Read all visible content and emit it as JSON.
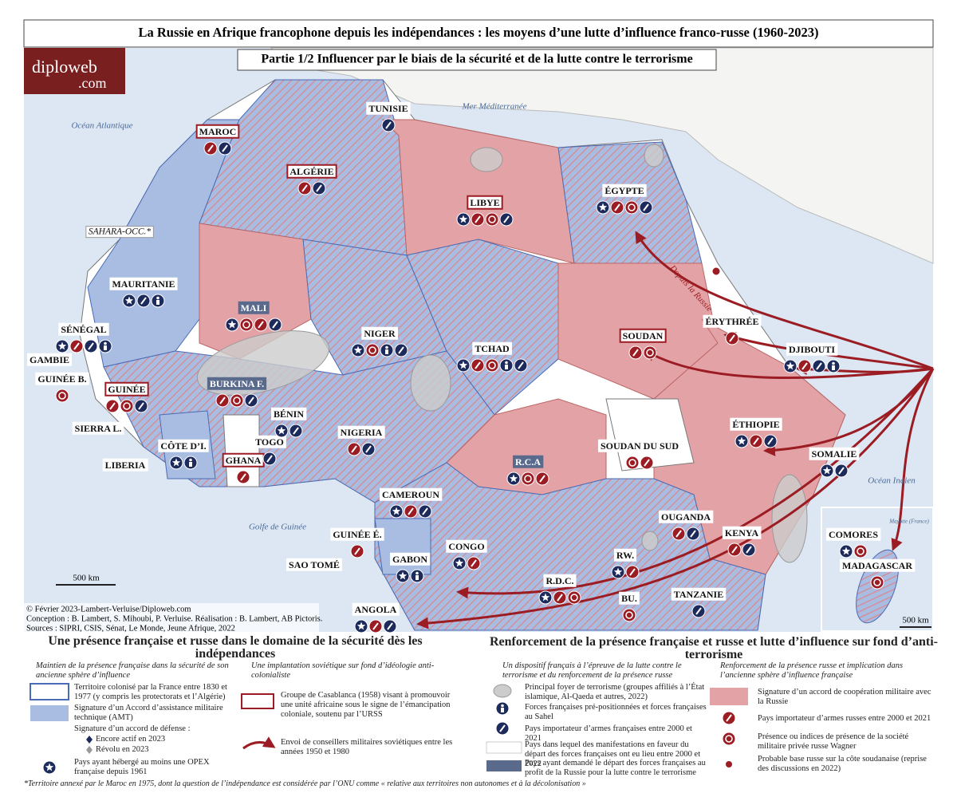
{
  "title": "La Russie en Afrique francophone depuis les indépendances : les moyens d’une lutte d’influence franco-russe (1960-2023)",
  "subtitle": "Partie 1/2 Influencer par le biais de la sécurité et de la lutte contre le terrorisme",
  "logo": {
    "name": "diploweb",
    "tld": ".com"
  },
  "seas": [
    "Mer Méditerranée",
    "Océan Atlantique",
    "Golfe de Guinée",
    "Océan Indien",
    "Mayotte (France)"
  ],
  "countries": [
    "TUNISIE",
    "MAROC",
    "ALGÉRIE",
    "LIBYE",
    "ÉGYPTE",
    "SAHARA-OCC.*",
    "MAURITANIE",
    "MALI",
    "SÉNÉGAL",
    "GAMBIE",
    "GUINÉE B.",
    "GUINÉE",
    "SIERRA L.",
    "LIBERIA",
    "CÔTE D’I.",
    "BURKINA F.",
    "GHANA",
    "TOGO",
    "BÉNIN",
    "NIGER",
    "NIGERIA",
    "TCHAD",
    "SOUDAN",
    "ÉRYTHRÉE",
    "DJIBOUTI",
    "ÉTHIOPIE",
    "SOMALIE",
    "SOUDAN DU SUD",
    "R.C.A",
    "CAMEROUN",
    "GUINÉE É.",
    "SAO TOMÉ",
    "GABON",
    "CONGO",
    "R.D.C.",
    "OUGANDA",
    "KENYA",
    "RW.",
    "BU.",
    "TANZANIE",
    "ANGOLA",
    "COMORES",
    "MADAGASCAR"
  ],
  "annotation": "Depuis la Russie",
  "scale_main": "500 km",
  "scale_inset": "500 km",
  "credits": [
    "© Février 2023-Lambert-Verluise/Diploweb.com",
    "Conception : B. Lambert, S. Mihoubi, P. Verluise. Réalisation : B. Lambert, AB Pictoris.",
    "Sources : SIPRI, CSIS, Sénat, Le Monde, Jeune Afrique, 2022"
  ],
  "legend": {
    "left": {
      "title": "Une présence française et russe dans le domaine de la sécurité dès les indépendances",
      "col1": {
        "heading": "Maintien de la présence française dans la sécurité de son ancienne sphère d’influence",
        "items": [
          "Territoire colonisé par la France entre 1830 et 1977 (y compris les protectorats et l’Algérie)",
          "Signature d’un Accord d’assistance militaire technique (AMT)",
          "Signature d’un accord de défense :",
          "Encore actif en 2023",
          "Révolu en 2023",
          "Pays ayant hébergé au moins une OPEX française depuis 1961"
        ]
      },
      "col2": {
        "heading": "Une implantation soviétique sur fond d’idéologie anti-colonialiste",
        "items": [
          "Groupe de Casablanca (1958) visant à promouvoir une unité africaine sous le signe de l’émancipation coloniale, soutenu par l’URSS",
          "Envoi de conseillers militaires soviétiques entre les années 1950 et 1980"
        ]
      }
    },
    "right": {
      "title": "Renforcement de la présence française et russe et lutte d’influence sur fond d’anti-terrorisme",
      "col1": {
        "heading": "Un dispositif français à l’épreuve de la lutte contre le terrorisme et du renforcement de la présence russe",
        "items": [
          "Principal foyer de terrorisme (groupes affiliés à l’État islamique, Al-Qaeda et autres, 2022)",
          "Forces françaises pré-positionnées et forces françaises au Sahel",
          "Pays importateur d’armes françaises entre 2000 et 2021",
          "Pays dans lequel des manifestations en faveur du départ des forces françaises ont eu lieu entre 2000 et 2022",
          "Pays ayant demandé le départ des forces françaises au profit de la Russie pour la lutte contre le terrorisme"
        ]
      },
      "col2": {
        "heading": "Renforcement de la présence russe et implication dans l’ancienne sphère d’influence française",
        "items": [
          "Signature d’un accord de coopération militaire avec la Russie",
          "Pays importateur d’armes russes entre 2000 et 2021",
          "Présence ou indices de présence de la société militaire privée russe Wagner",
          "Probable base russe sur la côte soudanaise (reprise des discussions en 2022)"
        ]
      }
    }
  },
  "footnote": "*Territoire annexé par le Maroc en 1975, dont la question de l’indépendance est considérée par l’ONU comme « relative aux territoires non autonomes et à la décolonisation »"
}
